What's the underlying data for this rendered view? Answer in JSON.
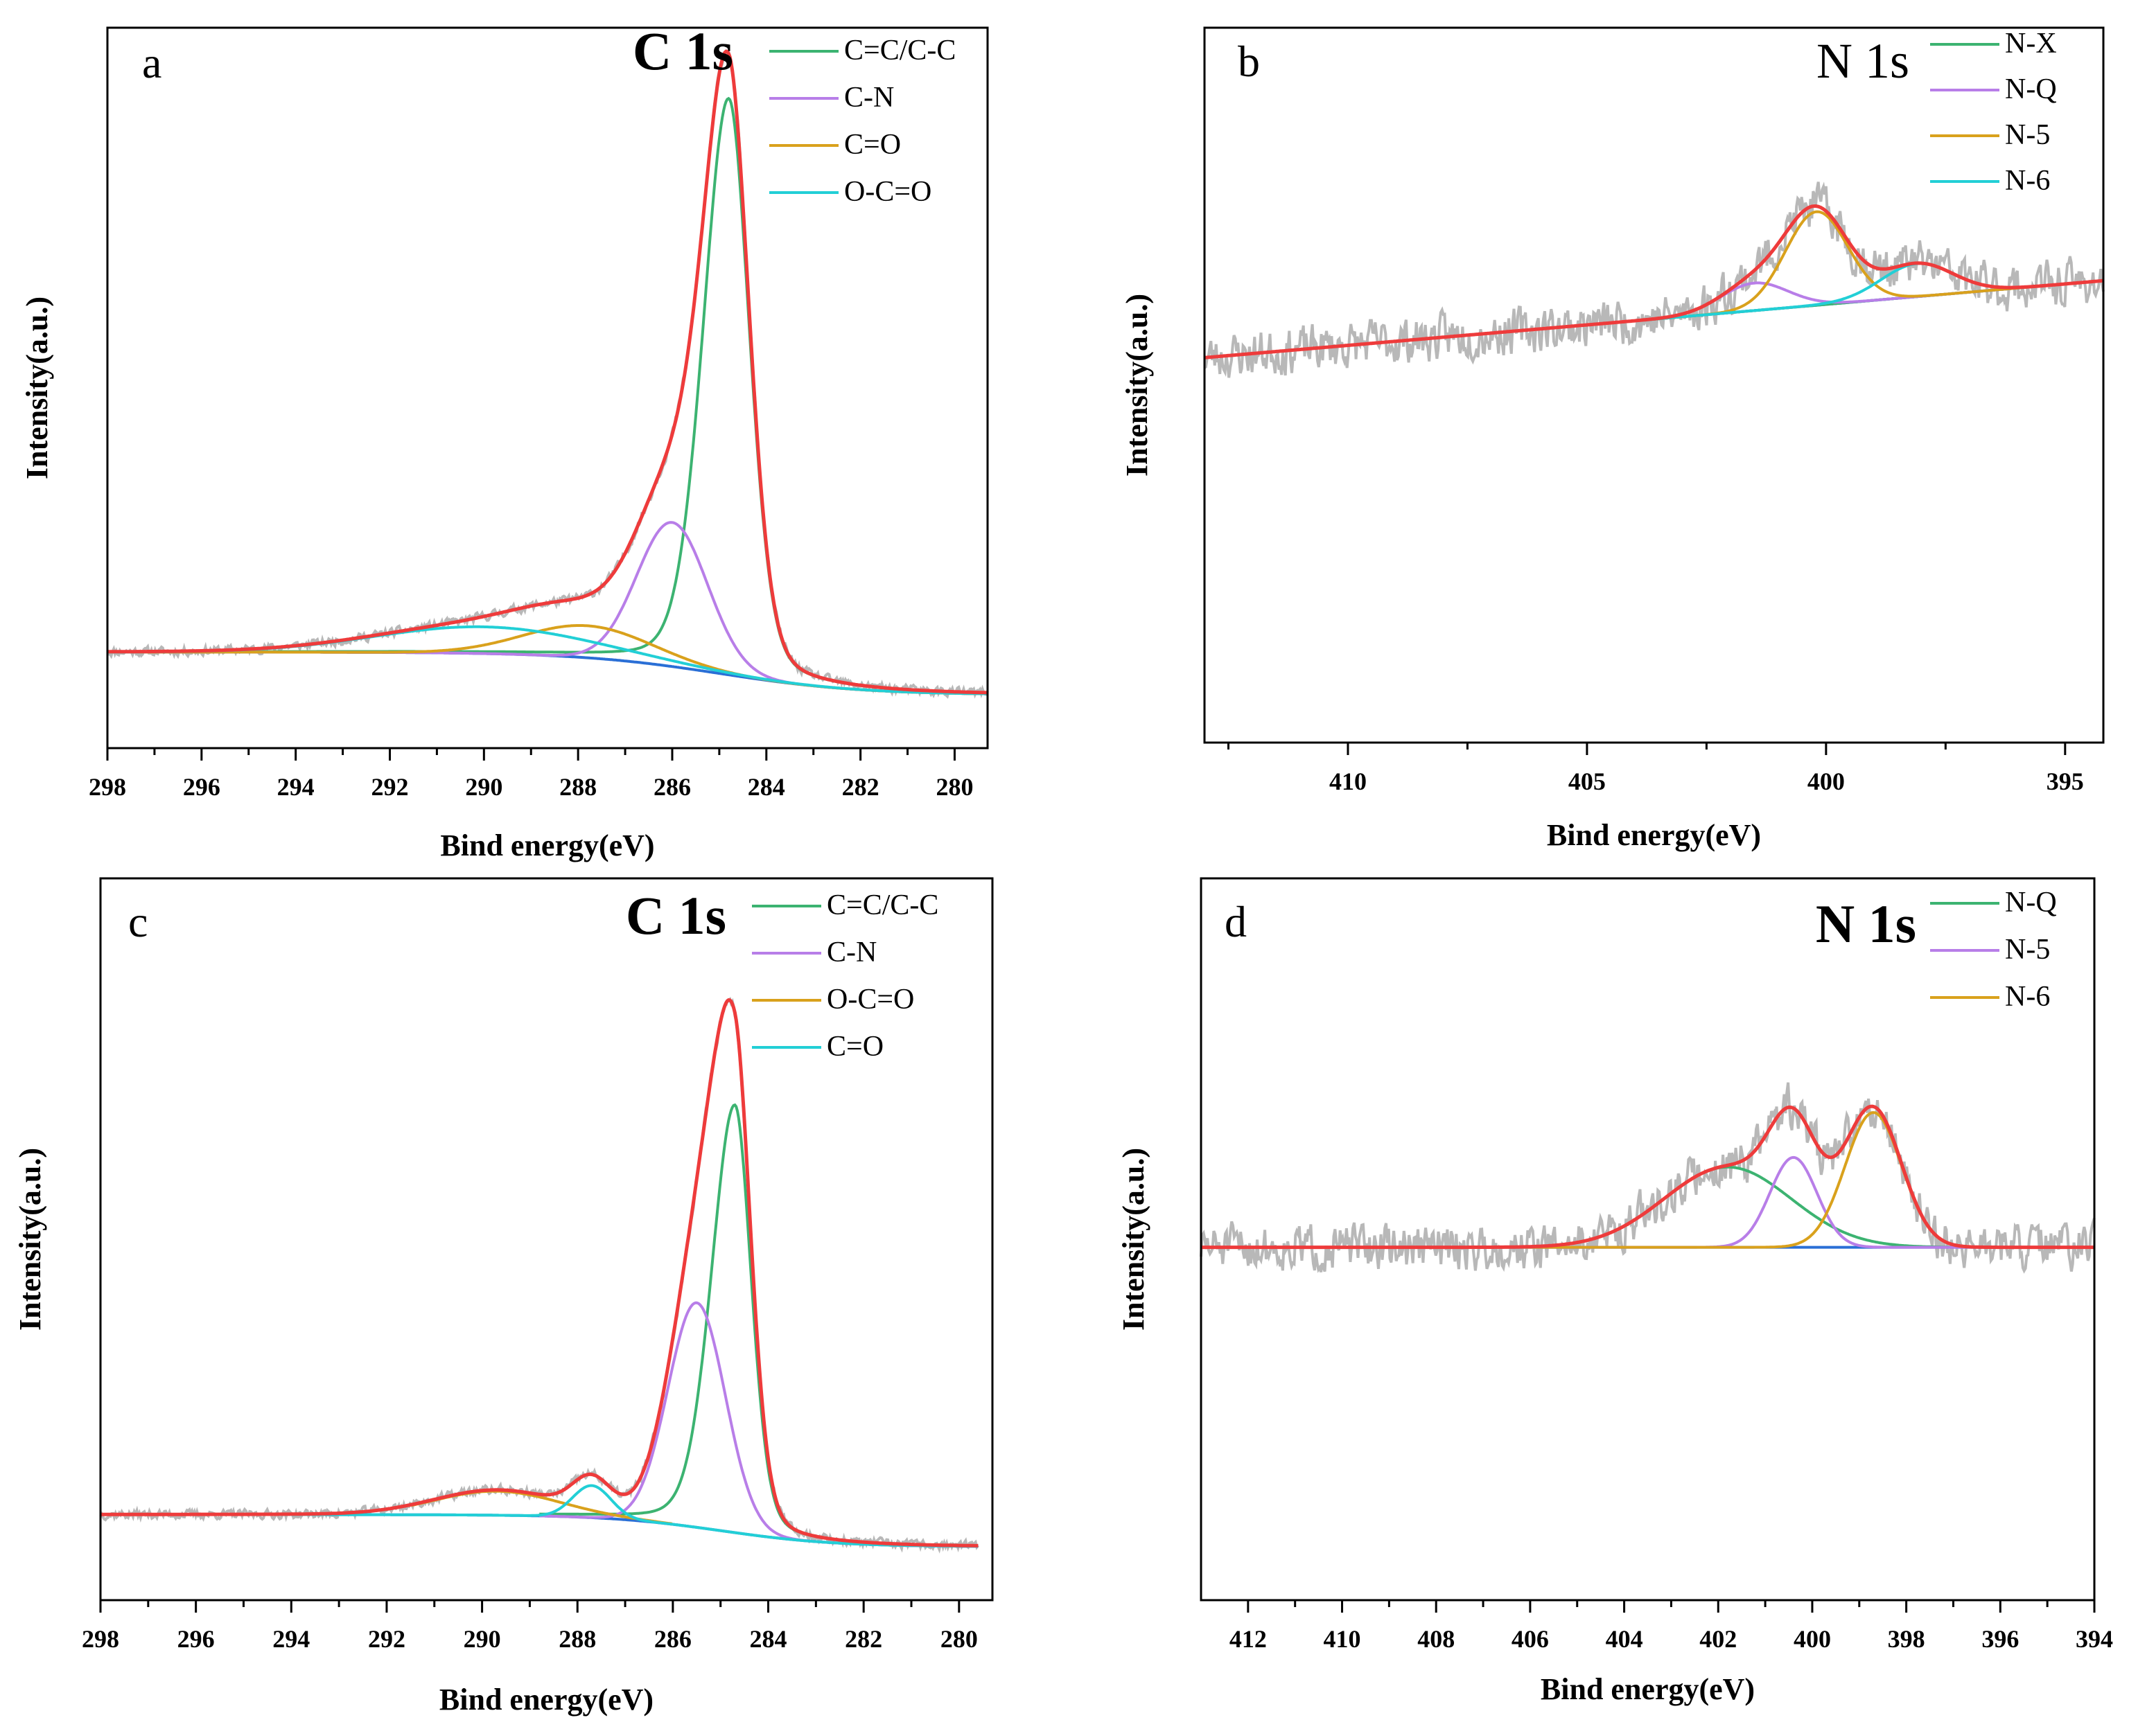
{
  "chart_data": [
    {
      "panel": "a",
      "type": "line",
      "title": "C 1s",
      "title_bold": true,
      "xlabel": "Bind energy(eV)",
      "ylabel": "Intensity(a.u.)",
      "xlim": [
        298,
        279.3
      ],
      "xticks": [
        298,
        296,
        294,
        292,
        290,
        288,
        286,
        284,
        282,
        280
      ],
      "xmin_ticks": true,
      "ylim": [
        -0.1,
        1.25
      ],
      "xrange": [
        298,
        279.3
      ],
      "raw": {
        "noise": 0.012,
        "seed": 11
      },
      "baseline": {
        "left": 0.08,
        "right": 0.0,
        "center": 285.0,
        "width": 1.5
      },
      "series": [
        {
          "name": "C=C/C-C",
          "color": "#3cb371",
          "shape": "asym",
          "center": 284.8,
          "amplitude": 1.08,
          "width_left": 0.55,
          "width_right": 0.45,
          "extends": [
            298,
            279.3
          ]
        },
        {
          "name": "C-N",
          "color": "#b87ee8",
          "shape": "gauss",
          "center": 286.0,
          "amplitude": 0.27,
          "width": 0.75,
          "extends": [
            298,
            279.3
          ]
        },
        {
          "name": "C=O",
          "color": "#d9a11c",
          "shape": "gauss",
          "center": 287.8,
          "amplitude": 0.06,
          "width": 1.35,
          "extends": [
            298,
            279.3
          ]
        },
        {
          "name": "O-C=O",
          "color": "#22cfd6",
          "shape": "gauss",
          "center": 290.0,
          "amplitude": 0.05,
          "width": 2.3,
          "extends": [
            298,
            279.3
          ]
        }
      ],
      "envelope_color": "#ee3b3b",
      "baseline_color": "#2a6fd6"
    },
    {
      "panel": "b",
      "type": "line",
      "title": "N 1s",
      "title_bold": false,
      "xlabel": "Bind energy(eV)",
      "ylabel": "Intensity(a.u.)",
      "xlim": [
        413,
        394.2
      ],
      "xticks": [
        410,
        405,
        400,
        395
      ],
      "xmin_ticks": true,
      "ylim": [
        -1.4,
        1.2
      ],
      "xrange": [
        413,
        394.2
      ],
      "raw": {
        "noise": 0.12,
        "seed": 23
      },
      "baseline": {
        "left": 0.0,
        "right": 0.28,
        "center": 404,
        "width": 9
      },
      "series": [
        {
          "name": "N-X",
          "color": "#3cb371",
          "shape": "gauss",
          "center": 401.4,
          "amplitude": 0.0,
          "width": 2.5,
          "extends": [
            413,
            394.2
          ]
        },
        {
          "name": "N-Q",
          "color": "#b87ee8",
          "shape": "gauss",
          "center": 401.5,
          "amplitude": 0.1,
          "width": 0.7,
          "extends": [
            413,
            394.2
          ]
        },
        {
          "name": "N-5",
          "color": "#d9a11c",
          "shape": "gauss",
          "center": 400.2,
          "amplitude": 0.34,
          "width": 0.65,
          "extends": [
            413,
            394.2
          ]
        },
        {
          "name": "N-6",
          "color": "#22cfd6",
          "shape": "gauss",
          "center": 398.1,
          "amplitude": 0.12,
          "width": 0.75,
          "extends": [
            413,
            394.2
          ]
        }
      ],
      "envelope_color": "#ee3b3b",
      "baseline_color": "#2a6fd6"
    },
    {
      "panel": "c",
      "type": "line",
      "title": "C 1s",
      "title_bold": true,
      "xlabel": "Bind energy(eV)",
      "ylabel": "Intensity(a.u.)",
      "xlim": [
        298,
        279.3
      ],
      "xticks": [
        298,
        296,
        294,
        292,
        290,
        288,
        286,
        284,
        282,
        280
      ],
      "xmin_ticks": true,
      "ylim": [
        -0.1,
        1.25
      ],
      "xrange": [
        298,
        279.6
      ],
      "raw": {
        "noise": 0.012,
        "seed": 37
      },
      "baseline": {
        "left": 0.06,
        "right": 0.0,
        "center": 285.0,
        "width": 1.2
      },
      "series": [
        {
          "name": "C=C/C-C",
          "color": "#3cb371",
          "shape": "asym",
          "center": 284.7,
          "amplitude": 0.8,
          "width_left": 0.5,
          "width_right": 0.35,
          "extends": [
            288.8,
            279.6
          ]
        },
        {
          "name": "C-N",
          "color": "#b87ee8",
          "shape": "gauss",
          "center": 285.5,
          "amplitude": 0.42,
          "width": 0.6,
          "extends": [
            288.8,
            279.6
          ]
        },
        {
          "name": "O-C=O",
          "color": "#d9a11c",
          "shape": "gauss",
          "center": 289.7,
          "amplitude": 0.045,
          "width": 1.3,
          "extends": [
            291.5,
            286.0
          ]
        },
        {
          "name": "C=O",
          "color": "#22cfd6",
          "shape": "gauss",
          "center": 287.7,
          "amplitude": 0.06,
          "width": 0.4,
          "extends": [
            298,
            279.6
          ]
        }
      ],
      "envelope_color": "#ee3b3b",
      "baseline_color": "#2a6fd6"
    },
    {
      "panel": "d",
      "type": "line",
      "title": "N 1s",
      "title_bold": true,
      "xlabel": "Bind energy(eV)",
      "ylabel": "Intensity(a.u.)",
      "xlim": [
        413,
        394
      ],
      "xticks": [
        412,
        410,
        408,
        406,
        404,
        402,
        400,
        398,
        396,
        394
      ],
      "xmin_ticks": true,
      "ylim": [
        -1.1,
        1.15
      ],
      "xrange": [
        413,
        394
      ],
      "raw": {
        "noise": 0.1,
        "seed": 51
      },
      "baseline": {
        "left": 0.0,
        "right": 0.0,
        "center": 400,
        "width": 8
      },
      "series": [
        {
          "name": "N-Q",
          "color": "#3cb371",
          "shape": "gauss",
          "center": 401.8,
          "amplitude": 0.25,
          "width": 1.35,
          "extends": [
            413,
            394
          ]
        },
        {
          "name": "N-5",
          "color": "#b87ee8",
          "shape": "gauss",
          "center": 400.4,
          "amplitude": 0.28,
          "width": 0.5,
          "extends": [
            413,
            394
          ]
        },
        {
          "name": "N-6",
          "color": "#d9a11c",
          "shape": "gauss",
          "center": 398.7,
          "amplitude": 0.42,
          "width": 0.6,
          "extends": [
            413,
            394
          ]
        }
      ],
      "envelope_color": "#ee3b3b",
      "baseline_color": "#2a6fd6",
      "raw_color": "#b8b8b8"
    }
  ]
}
